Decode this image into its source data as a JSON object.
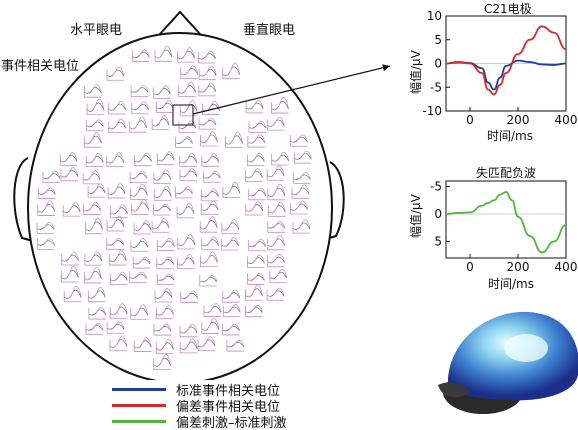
{
  "head_map": {
    "label_horizontal_eog": "水平眼电",
    "label_vertical_eog": "垂直眼电",
    "label_erp": "事件相关电位"
  },
  "legend": {
    "items": [
      {
        "label": "标准事件相关电位",
        "color": "#1f3f9a"
      },
      {
        "label": "偏差事件相关电位",
        "color": "#d62a2a"
      },
      {
        "label": "偏差刺激–标准刺激",
        "color": "#4fb33d"
      }
    ]
  },
  "colors": {
    "standard": "#1f3f9a",
    "deviant": "#d62a2a",
    "difference": "#4fb33d",
    "miniplot": "#c38ac7"
  },
  "chart_data": [
    {
      "type": "line",
      "title": "C21电极",
      "xlabel": "时间/ms",
      "ylabel": "幅值/μV",
      "xlim": [
        -100,
        400
      ],
      "ylim": [
        -10,
        10
      ],
      "xticks": [
        0,
        200,
        400
      ],
      "yticks": [
        10,
        5,
        0,
        -5,
        -10
      ],
      "series": [
        {
          "name": "标准事件相关电位",
          "x": [
            -100,
            -50,
            0,
            50,
            75,
            100,
            125,
            150,
            200,
            250,
            300,
            350,
            400
          ],
          "y": [
            0,
            0.3,
            0.1,
            -1,
            -4,
            -5.5,
            -3,
            -0.5,
            0.6,
            0.3,
            -0.2,
            -0.3,
            0
          ]
        },
        {
          "name": "偏差事件相关电位",
          "x": [
            -100,
            -50,
            0,
            50,
            75,
            100,
            125,
            150,
            200,
            250,
            300,
            350,
            400
          ],
          "y": [
            0,
            0.2,
            0,
            -2,
            -5.5,
            -6.5,
            -4.5,
            -2,
            2,
            5,
            7.8,
            6.5,
            3
          ]
        }
      ]
    },
    {
      "type": "line",
      "title": "失匹配负波",
      "xlabel": "时间/ms",
      "ylabel": "幅值/μV",
      "xlim": [
        -100,
        400
      ],
      "ylim": [
        8,
        -6
      ],
      "xticks": [
        0,
        200,
        400
      ],
      "yticks": [
        -5,
        0,
        5
      ],
      "series": [
        {
          "name": "偏差刺激–标准刺激",
          "x": [
            -100,
            -50,
            0,
            50,
            75,
            100,
            125,
            150,
            175,
            200,
            250,
            300,
            350,
            400
          ],
          "y": [
            0,
            -0.2,
            -0.3,
            -1.5,
            -2,
            -2.5,
            -3.5,
            -4,
            -2.5,
            0.5,
            4,
            7,
            5,
            2
          ]
        }
      ]
    }
  ]
}
